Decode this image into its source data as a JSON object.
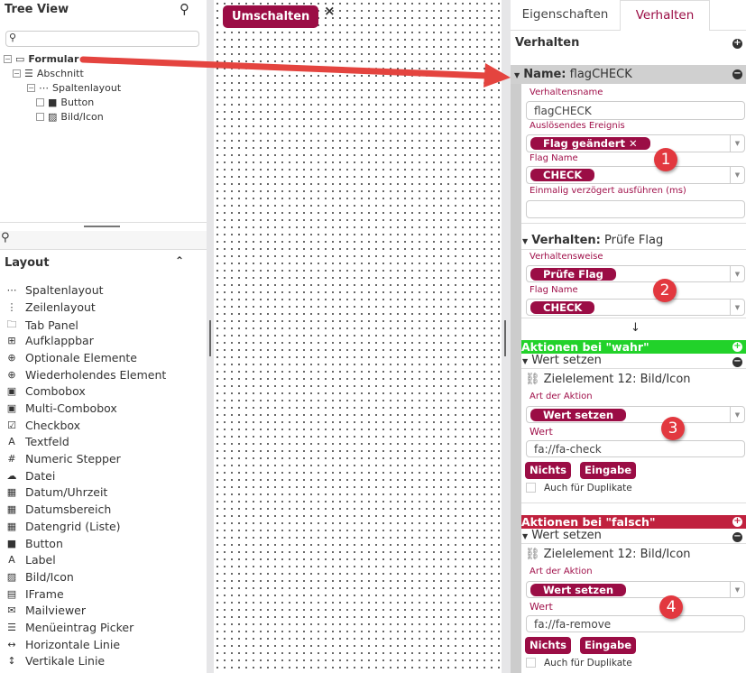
{
  "tree": {
    "title": "Tree View",
    "items": [
      {
        "label": "Formular",
        "icon": "window-icon"
      },
      {
        "label": "Abschnitt",
        "icon": "list-icon"
      },
      {
        "label": "Spaltenlayout",
        "icon": "dots-icon"
      },
      {
        "label": "Button",
        "icon": "square-icon"
      },
      {
        "label": "Bild/Icon",
        "icon": "image-icon"
      }
    ]
  },
  "layout": {
    "title": "Layout",
    "items": [
      {
        "label": "Spaltenlayout",
        "icon": "⋯"
      },
      {
        "label": "Zeilenlayout",
        "icon": "⋮"
      },
      {
        "label": "Tab Panel",
        "icon": "🗀"
      },
      {
        "label": "Aufklappbar",
        "icon": "⊞"
      },
      {
        "label": "Optionale Elemente",
        "icon": "⊕"
      },
      {
        "label": "Wiederholendes Element",
        "icon": "⊕"
      },
      {
        "label": "Combobox",
        "icon": "▣"
      },
      {
        "label": "Multi-Combobox",
        "icon": "▣"
      },
      {
        "label": "Checkbox",
        "icon": "☑"
      },
      {
        "label": "Textfeld",
        "icon": "A"
      },
      {
        "label": "Numeric Stepper",
        "icon": "#"
      },
      {
        "label": "Datei",
        "icon": "☁"
      },
      {
        "label": "Datum/Uhrzeit",
        "icon": "▦"
      },
      {
        "label": "Datumsbereich",
        "icon": "▦"
      },
      {
        "label": "Datengrid (Liste)",
        "icon": "▦"
      },
      {
        "label": "Button",
        "icon": "■"
      },
      {
        "label": "Label",
        "icon": "A"
      },
      {
        "label": "Bild/Icon",
        "icon": "▨"
      },
      {
        "label": "IFrame",
        "icon": "▤"
      },
      {
        "label": "Mailviewer",
        "icon": "✉"
      },
      {
        "label": "Menüeintrag Picker",
        "icon": "☰"
      },
      {
        "label": "Horizontale Linie",
        "icon": "↔"
      },
      {
        "label": "Vertikale Linie",
        "icon": "↕"
      }
    ]
  },
  "canvas": {
    "button": "Umschalten",
    "close": "×"
  },
  "tabs": {
    "properties": "Eigenschaften",
    "behavior": "Verhalten"
  },
  "panel": {
    "title": "Verhalten",
    "name_header": {
      "key": "Name:",
      "value": "flagCHECK"
    },
    "verhaltensname_label": "Verhaltensname",
    "verhaltensname_value": "flagCHECK",
    "event_label": "Auslösendes Ereignis",
    "event_value": "Flag geändert ✕",
    "flag_label": "Flag Name",
    "flag_value": "CHECK",
    "delay_label": "Einmalig verzögert ausführen (ms)",
    "delay_value": "",
    "behavior_header": {
      "key": "Verhalten:",
      "value": "Prüfe Flag"
    },
    "mode_label": "Verhaltensweise",
    "mode_value": "Prüfe Flag",
    "flag2_label": "Flag Name",
    "flag2_value": "CHECK",
    "arrow": "↓",
    "true_actions": {
      "title": "Aktionen bei \"wahr\"",
      "action": "Wert setzen",
      "target": "Zielelement 12: Bild/Icon",
      "type_label": "Art der Aktion",
      "type_value": "Wert setzen",
      "value_label": "Wert",
      "value": "fa://fa-check",
      "btn1": "Nichts",
      "btn2": "Eingabe",
      "dup": "Auch für Duplikate",
      "color": "#22d22a"
    },
    "false_actions": {
      "title": "Aktionen bei \"falsch\"",
      "action": "Wert setzen",
      "target": "Zielelement 12: Bild/Icon",
      "type_label": "Art der Aktion",
      "type_value": "Wert setzen",
      "value_label": "Wert",
      "value": "fa://fa-remove",
      "btn1": "Nichts",
      "btn2": "Eingabe",
      "dup": "Auch für Duplikate",
      "color": "#c0213e"
    }
  },
  "annotations": [
    "1",
    "2",
    "3",
    "4"
  ],
  "colors": {
    "accent": "#9b0d45",
    "annotation": "#e2383f"
  }
}
